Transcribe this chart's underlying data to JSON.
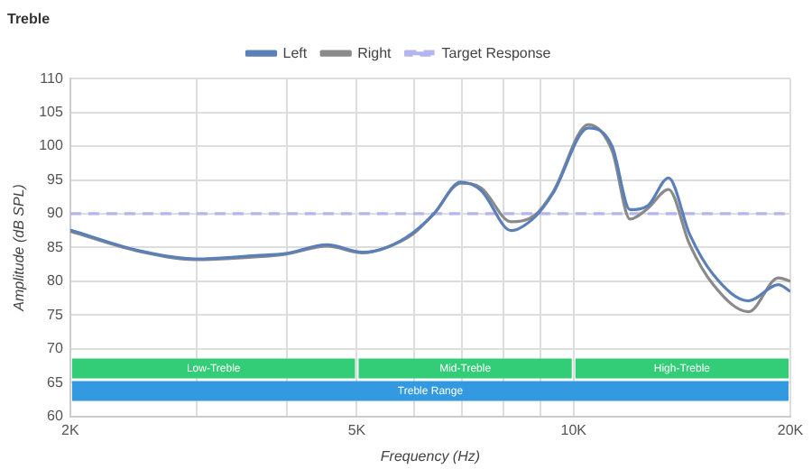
{
  "chart_data": {
    "type": "line",
    "title": "Treble",
    "xlabel": "Frequency (Hz)",
    "ylabel": "Amplitude (dB SPL)",
    "x": [
      2000,
      2474,
      2992,
      3617,
      3980,
      4545,
      5094,
      5496,
      5984,
      6398,
      6970,
      7446,
      8187,
      8834,
      9360,
      10486,
      11313,
      11978,
      12682,
      13547,
      14487,
      15626,
      17500,
      19250,
      20000
    ],
    "series": [
      {
        "name": "Left",
        "color": "#5b7fb8",
        "values": [
          87.6,
          84.6,
          83.3,
          83.8,
          84.1,
          85.4,
          84.3,
          85.0,
          87.2,
          90.0,
          94.7,
          93.4,
          87.5,
          89.5,
          93.0,
          102.7,
          100.0,
          90.6,
          91.2,
          95.3,
          87.0,
          81.0,
          77.1,
          79.5,
          78.5
        ]
      },
      {
        "name": "Right",
        "color": "#8a8a8a",
        "values": [
          87.4,
          84.5,
          83.2,
          83.6,
          84.0,
          85.2,
          84.2,
          85.0,
          87.0,
          90.0,
          94.5,
          93.8,
          88.8,
          89.8,
          93.2,
          103.2,
          99.3,
          89.2,
          90.8,
          93.6,
          85.5,
          79.5,
          75.5,
          80.5,
          80.0
        ]
      },
      {
        "name": "Target Response",
        "color": "#b4b4f0",
        "line_style": "dashed",
        "x": [
          2000,
          20000
        ],
        "values": [
          90,
          90
        ]
      }
    ],
    "bands": [
      {
        "axis": "x",
        "from": 2000,
        "to": 5000,
        "label": "Low-Treble",
        "color": "#33cc77"
      },
      {
        "axis": "x",
        "from": 5000,
        "to": 10000,
        "label": "Mid-Treble",
        "color": "#33cc77"
      },
      {
        "axis": "x",
        "from": 10000,
        "to": 20000,
        "label": "High-Treble",
        "color": "#33cc77"
      },
      {
        "axis": "x",
        "from": 2000,
        "to": 20000,
        "label": "Treble Range",
        "color": "#3399e0"
      }
    ],
    "log": "x",
    "xlim": [
      2000,
      20000
    ],
    "xticks": [
      {
        "value": 2000,
        "label": "2K"
      },
      {
        "value": 3000,
        "label": null
      },
      {
        "value": 4000,
        "label": null
      },
      {
        "value": 5000,
        "label": "5K"
      },
      {
        "value": 6000,
        "label": null
      },
      {
        "value": 7000,
        "label": null
      },
      {
        "value": 8000,
        "label": null
      },
      {
        "value": 9000,
        "label": null
      },
      {
        "value": 10000,
        "label": "10K"
      },
      {
        "value": 20000,
        "label": "20K"
      }
    ],
    "ylim": [
      60,
      110
    ],
    "yticks": [
      60,
      65,
      70,
      75,
      80,
      85,
      90,
      95,
      100,
      105,
      110
    ],
    "grid": true,
    "legend": "top",
    "marker": "none",
    "line_style": "solid"
  }
}
